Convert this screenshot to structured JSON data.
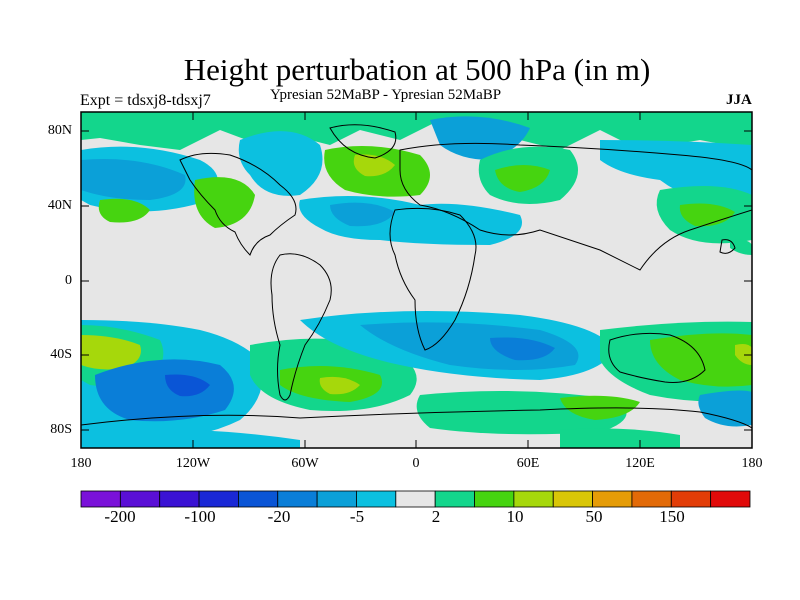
{
  "title": "Height perturbation at 500 hPa (in m)",
  "subtitle_left": "Expt = tdsxj8-tdsxj7",
  "subtitle_center": "Ypresian  52MaBP - Ypresian  52MaBP",
  "subtitle_right": "JJA",
  "lat_ticks": [
    "80N",
    "40N",
    "0",
    "40S",
    "80S"
  ],
  "lon_ticks": [
    "180",
    "120W",
    "60W",
    "0",
    "60E",
    "120E",
    "180"
  ],
  "colorbar": {
    "colors": [
      "#7a12d9",
      "#5a0fd6",
      "#3a12d4",
      "#1a28d6",
      "#0a55d6",
      "#0a7ed8",
      "#0ba0d8",
      "#0cc0e0",
      "#e6e6e6",
      "#13d68c",
      "#46d410",
      "#a6d80b",
      "#d9c607",
      "#e59c07",
      "#e26a07",
      "#e23d07",
      "#e10a0a"
    ],
    "labels": [
      "-200",
      "-100",
      "-20",
      "-5",
      "2",
      "10",
      "50",
      "150"
    ]
  },
  "palette": {
    "background": "#e6e6e6",
    "land_outline": "#000000"
  }
}
